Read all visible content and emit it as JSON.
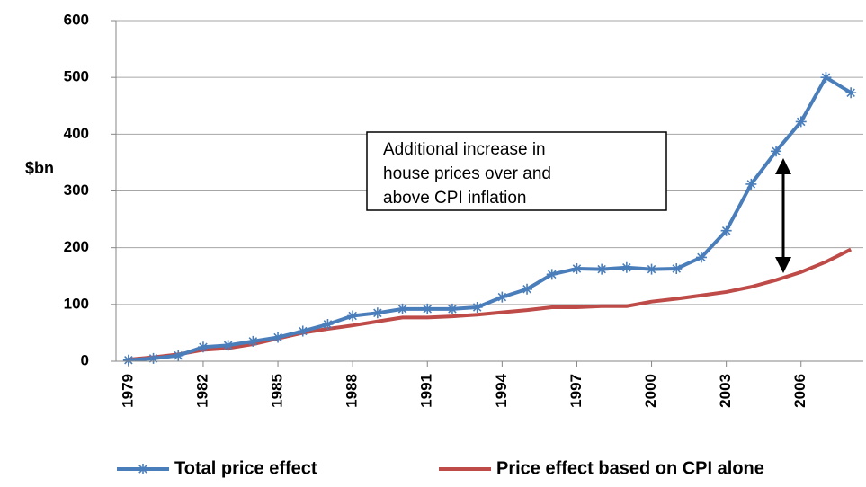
{
  "chart_data": {
    "type": "line",
    "y_label": "$bn",
    "annotation": [
      "Additional increase in",
      "house prices over and",
      "above CPI inflation"
    ],
    "x": [
      1979,
      1980,
      1981,
      1982,
      1983,
      1984,
      1985,
      1986,
      1987,
      1988,
      1989,
      1990,
      1991,
      1992,
      1993,
      1994,
      1995,
      1996,
      1997,
      1998,
      1999,
      2000,
      2001,
      2002,
      2003,
      2004,
      2005,
      2006,
      2007,
      2008
    ],
    "series": [
      {
        "name": "Total price effect",
        "color": "#4a7ebb",
        "marker": "asterisk",
        "values": [
          2,
          5,
          10,
          25,
          28,
          35,
          42,
          53,
          65,
          80,
          85,
          92,
          92,
          92,
          95,
          113,
          127,
          153,
          163,
          162,
          165,
          162,
          163,
          183,
          230,
          312,
          370,
          422,
          500,
          473
        ]
      },
      {
        "name": "Price effect based on CPI alone",
        "color": "#be4b48",
        "values": [
          3,
          7,
          12,
          20,
          23,
          30,
          40,
          50,
          57,
          63,
          70,
          77,
          77,
          79,
          82,
          86,
          90,
          95,
          95,
          97,
          97,
          105,
          110,
          116,
          122,
          131,
          143,
          157,
          175,
          197
        ]
      }
    ],
    "xlim": [
      1978.5,
      2008.5
    ],
    "xticks": [
      1979,
      1982,
      1985,
      1988,
      1991,
      1994,
      1997,
      2000,
      2003,
      2006
    ],
    "ylim": [
      0,
      600
    ],
    "yticks": [
      0,
      100,
      200,
      300,
      400,
      500,
      600
    ],
    "grid": true,
    "legend": "bottom"
  }
}
